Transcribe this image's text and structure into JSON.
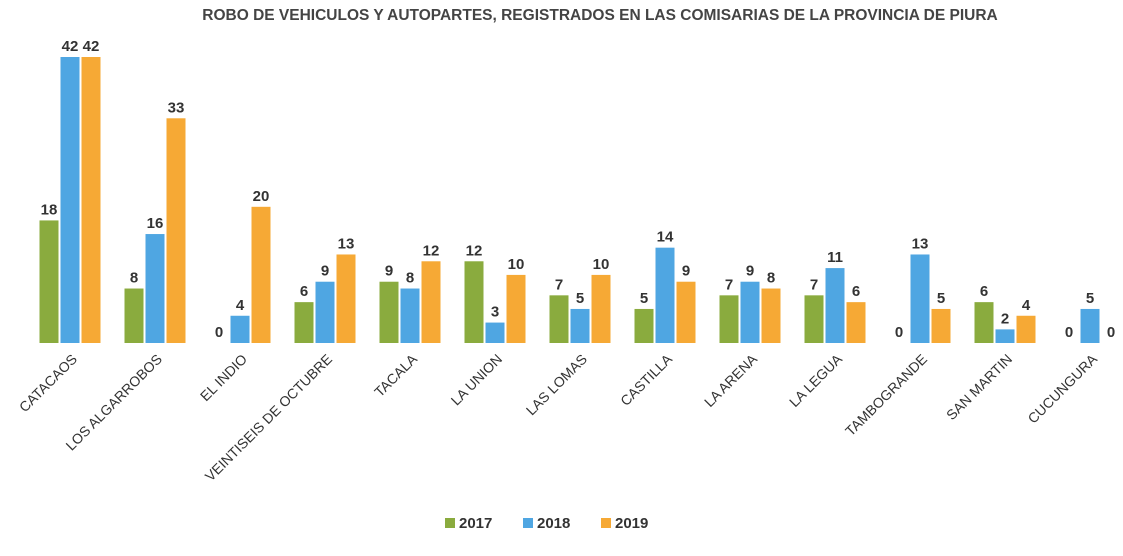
{
  "chart_data": {
    "type": "bar",
    "title": "ROBO DE VEHICULOS Y AUTOPARTES, REGISTRADOS EN LAS COMISARIAS DE LA PROVINCIA DE PIURA",
    "categories": [
      "CATACAOS",
      "LOS ALGARROBOS",
      "EL INDIO",
      "VEINTISEIS DE OCTUBRE",
      "TACALA",
      "LA UNION",
      "LAS LOMAS",
      "CASTILLA",
      "LA ARENA",
      "LA LEGUA",
      "TAMBOGRANDE",
      "SAN MARTIN",
      "CUCUNGURA"
    ],
    "series": [
      {
        "name": "2017",
        "color": "#8aab3e",
        "values": [
          18,
          8,
          0,
          6,
          9,
          12,
          7,
          5,
          7,
          7,
          0,
          6,
          0
        ]
      },
      {
        "name": "2018",
        "color": "#4fa6e2",
        "values": [
          42,
          16,
          4,
          9,
          8,
          3,
          5,
          14,
          9,
          11,
          13,
          2,
          5
        ]
      },
      {
        "name": "2019",
        "color": "#f6a935",
        "values": [
          42,
          33,
          20,
          13,
          12,
          10,
          10,
          9,
          8,
          6,
          5,
          4,
          0
        ]
      }
    ],
    "legend": "bottom"
  }
}
